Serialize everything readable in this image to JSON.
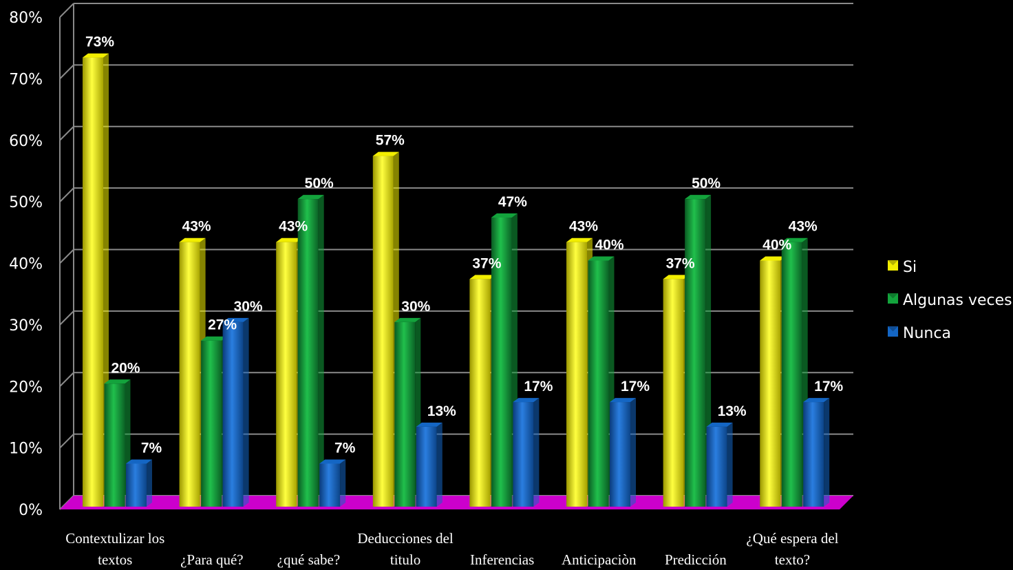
{
  "chart_data": {
    "type": "bar",
    "categories": [
      [
        "Contextulizar los",
        "textos"
      ],
      [
        "¿Para qué?"
      ],
      [
        "¿qué sabe?"
      ],
      [
        "Deducciones del",
        "titulo"
      ],
      [
        "Inferencias"
      ],
      [
        "Anticipaciòn"
      ],
      [
        "Predicción"
      ],
      [
        "¿Qué espera del",
        "texto?"
      ]
    ],
    "series": [
      {
        "name": "Si",
        "color": "#f2ee00",
        "values": [
          73,
          43,
          43,
          57,
          37,
          43,
          37,
          40
        ],
        "labels": [
          "73%",
          "43%",
          "43%",
          "57%",
          "37%",
          "43%",
          "37%",
          "40%"
        ]
      },
      {
        "name": "Algunas veces",
        "color": "#13a33c",
        "values": [
          20,
          27,
          50,
          30,
          47,
          40,
          50,
          43
        ],
        "labels": [
          "20%",
          "27%",
          "50%",
          "30%",
          "47%",
          "40%",
          "50%",
          "43%"
        ]
      },
      {
        "name": "Nunca",
        "color": "#1466c4",
        "values": [
          7,
          30,
          7,
          13,
          17,
          17,
          13,
          17
        ],
        "labels": [
          "7%",
          "30%",
          "7%",
          "13%",
          "17%",
          "17%",
          "13%",
          "17%"
        ]
      }
    ],
    "y_ticks": [
      "0%",
      "10%",
      "20%",
      "30%",
      "40%",
      "50%",
      "60%",
      "70%",
      "80%"
    ],
    "ylim": [
      0,
      80
    ],
    "grid": true,
    "legend_position": "right",
    "floor_color": "#cc00cc",
    "background": "#000000"
  }
}
